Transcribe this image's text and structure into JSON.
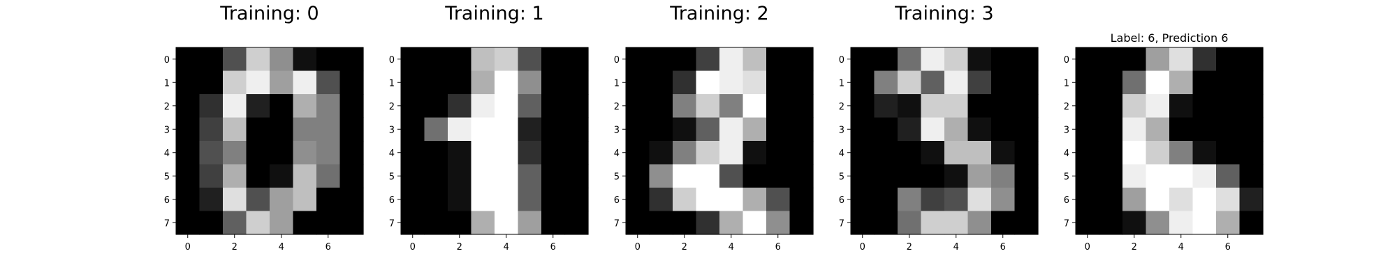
{
  "figure": {
    "background": "#ffffff",
    "colormap": "gray",
    "value_range": [
      0,
      16
    ]
  },
  "chart_data": [
    {
      "type": "heatmap",
      "title": "Training: 0",
      "title_size": "large",
      "xticks": [
        0,
        2,
        4,
        6
      ],
      "yticks": [
        0,
        1,
        2,
        3,
        4,
        5,
        6,
        7
      ],
      "grid": false,
      "values": [
        [
          0,
          0,
          5,
          13,
          9,
          1,
          0,
          0
        ],
        [
          0,
          0,
          13,
          15,
          10,
          15,
          5,
          0
        ],
        [
          0,
          3,
          15,
          2,
          0,
          11,
          8,
          0
        ],
        [
          0,
          4,
          12,
          0,
          0,
          8,
          8,
          0
        ],
        [
          0,
          5,
          8,
          0,
          0,
          9,
          8,
          0
        ],
        [
          0,
          4,
          11,
          0,
          1,
          12,
          7,
          0
        ],
        [
          0,
          2,
          14,
          5,
          10,
          12,
          0,
          0
        ],
        [
          0,
          0,
          6,
          13,
          10,
          0,
          0,
          0
        ]
      ]
    },
    {
      "type": "heatmap",
      "title": "Training: 1",
      "title_size": "large",
      "xticks": [
        0,
        2,
        4,
        6
      ],
      "yticks": [
        0,
        1,
        2,
        3,
        4,
        5,
        6,
        7
      ],
      "grid": false,
      "values": [
        [
          0,
          0,
          0,
          12,
          13,
          5,
          0,
          0
        ],
        [
          0,
          0,
          0,
          11,
          16,
          9,
          0,
          0
        ],
        [
          0,
          0,
          3,
          15,
          16,
          6,
          0,
          0
        ],
        [
          0,
          7,
          15,
          16,
          16,
          2,
          0,
          0
        ],
        [
          0,
          0,
          1,
          16,
          16,
          3,
          0,
          0
        ],
        [
          0,
          0,
          1,
          16,
          16,
          6,
          0,
          0
        ],
        [
          0,
          0,
          1,
          16,
          16,
          6,
          0,
          0
        ],
        [
          0,
          0,
          0,
          11,
          16,
          10,
          0,
          0
        ]
      ]
    },
    {
      "type": "heatmap",
      "title": "Training: 2",
      "title_size": "large",
      "xticks": [
        0,
        2,
        4,
        6
      ],
      "yticks": [
        0,
        1,
        2,
        3,
        4,
        5,
        6,
        7
      ],
      "grid": false,
      "values": [
        [
          0,
          0,
          0,
          4,
          15,
          12,
          0,
          0
        ],
        [
          0,
          0,
          3,
          16,
          15,
          14,
          0,
          0
        ],
        [
          0,
          0,
          8,
          13,
          8,
          16,
          0,
          0
        ],
        [
          0,
          0,
          1,
          6,
          15,
          11,
          0,
          0
        ],
        [
          0,
          1,
          8,
          13,
          15,
          1,
          0,
          0
        ],
        [
          0,
          9,
          16,
          16,
          5,
          0,
          0,
          0
        ],
        [
          0,
          3,
          13,
          16,
          16,
          11,
          5,
          0
        ],
        [
          0,
          0,
          0,
          3,
          11,
          16,
          9,
          0
        ]
      ]
    },
    {
      "type": "heatmap",
      "title": "Training: 3",
      "title_size": "large",
      "xticks": [
        0,
        2,
        4,
        6
      ],
      "yticks": [
        0,
        1,
        2,
        3,
        4,
        5,
        6,
        7
      ],
      "grid": false,
      "values": [
        [
          0,
          0,
          7,
          15,
          13,
          1,
          0,
          0
        ],
        [
          0,
          8,
          13,
          6,
          15,
          4,
          0,
          0
        ],
        [
          0,
          2,
          1,
          13,
          13,
          0,
          0,
          0
        ],
        [
          0,
          0,
          2,
          15,
          11,
          1,
          0,
          0
        ],
        [
          0,
          0,
          0,
          1,
          12,
          12,
          1,
          0
        ],
        [
          0,
          0,
          0,
          0,
          1,
          10,
          8,
          0
        ],
        [
          0,
          0,
          8,
          4,
          5,
          14,
          9,
          0
        ],
        [
          0,
          0,
          7,
          13,
          13,
          9,
          0,
          0
        ]
      ]
    },
    {
      "type": "heatmap",
      "title": "Label: 6, Prediction 6",
      "title_size": "small",
      "xticks": [
        0,
        2,
        4,
        6
      ],
      "yticks": [
        0,
        1,
        2,
        3,
        4,
        5,
        6,
        7
      ],
      "grid": false,
      "values": [
        [
          0,
          0,
          0,
          10,
          14,
          3,
          0,
          0
        ],
        [
          0,
          0,
          7,
          16,
          11,
          0,
          0,
          0
        ],
        [
          0,
          0,
          13,
          15,
          1,
          0,
          0,
          0
        ],
        [
          0,
          0,
          15,
          11,
          0,
          0,
          0,
          0
        ],
        [
          0,
          0,
          16,
          13,
          8,
          1,
          0,
          0
        ],
        [
          0,
          0,
          15,
          16,
          16,
          15,
          6,
          0
        ],
        [
          0,
          0,
          10,
          16,
          14,
          16,
          14,
          2
        ],
        [
          0,
          0,
          1,
          9,
          15,
          16,
          11,
          0
        ]
      ]
    }
  ]
}
